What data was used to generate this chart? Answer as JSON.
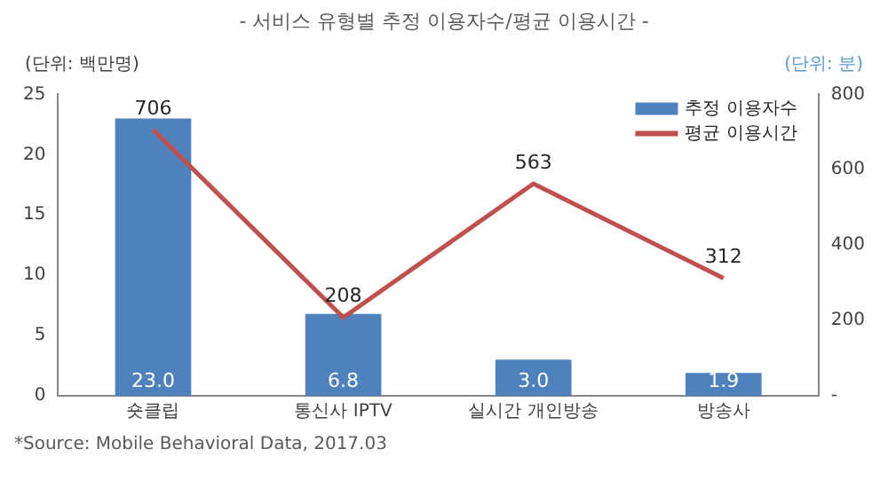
{
  "chart_data": {
    "type": "bar",
    "title": "- 서비스 유형별 추정 이용자수/평균 이용시간 -",
    "ylabel": "(단위: 백만명)",
    "y2label": "(단위: 분)",
    "categories": [
      "숏클립",
      "통신사 IPTV",
      "실시간 개인방송",
      "방송사"
    ],
    "series": [
      {
        "name": "추정 이용자수",
        "color": "#4f81bd",
        "values": [
          23.0,
          6.8,
          3.0,
          1.9
        ],
        "value_labels": [
          "23.0",
          "6.8",
          "3.0",
          "1.9"
        ]
      },
      {
        "name": "평균 이용시간",
        "type": "line",
        "axis": "y2",
        "color": "#c0504d",
        "values": [
          706,
          208,
          563,
          312
        ],
        "value_labels": [
          "706",
          "208",
          "563",
          "312"
        ]
      }
    ],
    "ylim": [
      0,
      25
    ],
    "yticks": [
      0,
      5,
      10,
      15,
      20,
      25
    ],
    "y2lim": [
      0,
      800
    ],
    "y2ticks": [
      {
        "value": 0,
        "label": "-"
      },
      200,
      400,
      600,
      800
    ],
    "grid": false,
    "legend": "top right",
    "marker": "none",
    "annotations": [
      "*Source: Mobile Behavioral Data, 2017.03"
    ]
  }
}
